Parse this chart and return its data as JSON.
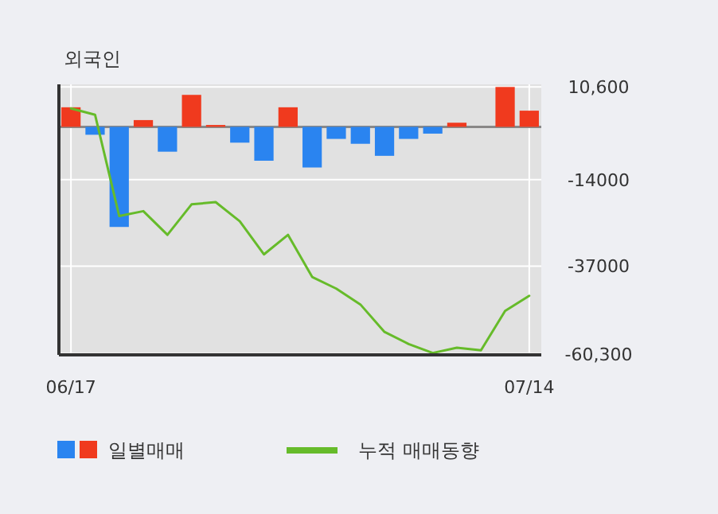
{
  "chart_data": {
    "type": "bar",
    "title": "외국인",
    "categories": [
      "06/17",
      null,
      null,
      null,
      null,
      null,
      null,
      null,
      null,
      null,
      null,
      null,
      null,
      null,
      null,
      null,
      null,
      null,
      null,
      "07/14"
    ],
    "series": [
      {
        "name": "일별매매",
        "colors": [
          "#f03a1e",
          "#2a84f0",
          "#2a84f0",
          "#f03a1e",
          "#2a84f0",
          "#f03a1e",
          "#f03a1e",
          "#2a84f0",
          "#2a84f0",
          "#f03a1e",
          "#2a84f0",
          "#2a84f0",
          "#2a84f0",
          "#2a84f0",
          "#2a84f0",
          "#2a84f0",
          "#f03a1e",
          "#f03a1e",
          "#f03a1e",
          "#f03a1e"
        ],
        "values": [
          5200,
          -2100,
          -26600,
          1800,
          -6600,
          8500,
          500,
          -4200,
          -9000,
          5200,
          -10800,
          -3200,
          -4500,
          -7700,
          -3200,
          -1800,
          1100,
          0,
          10600,
          4300
        ]
      },
      {
        "name": "누적 매매동향",
        "type": "line",
        "color": "#66bb2a",
        "values": [
          4900,
          3200,
          -23700,
          -22400,
          -28700,
          -20600,
          -20000,
          -25100,
          -33900,
          -28700,
          -39900,
          -43000,
          -47200,
          -54500,
          -57700,
          -60100,
          -58700,
          -59400,
          -48900,
          -44900
        ]
      }
    ],
    "ylim": [
      -60600,
      11300
    ],
    "yticks": [
      {
        "value": 10600,
        "label": "10,600"
      },
      {
        "value": -14000,
        "label": "-14000"
      },
      {
        "value": -37000,
        "label": "-37000"
      },
      {
        "value": -60300,
        "label": "-60,300"
      }
    ],
    "grid": true,
    "legend": "bottom"
  }
}
